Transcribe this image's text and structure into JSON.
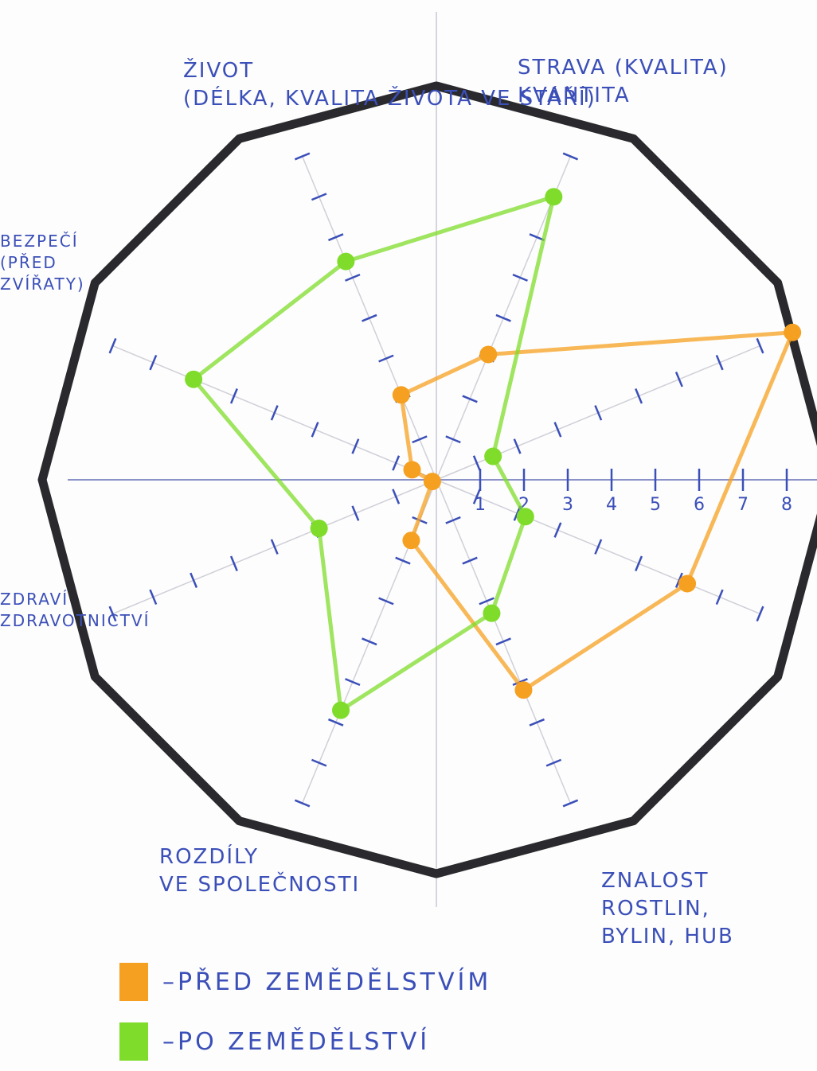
{
  "chart_data": {
    "type": "radar",
    "categories": [
      "STRAVA (KVALITA)\nKVANTITA",
      null,
      null,
      "ZNALOST ROSTLIN,\nBYLIN, HUB",
      "ROZDÍLY\nVE SPOLEČNOSTI",
      "ZDRAVÍ\nZDRAVOTNICTVÍ",
      "BEZPEČÍ\n(PŘED\nZVÍŘATY)",
      "ŽIVOT\n(DÉLKA, KVALITA ŽIVOTA VE STÁŘÍ)"
    ],
    "series": [
      {
        "name": "PŘED ZEMĚDĚLSTVÍM",
        "color": "#f5a020",
        "values": [
          3.1,
          8.8,
          6.2,
          5.2,
          1.5,
          0.1,
          0.6,
          2.1
        ]
      },
      {
        "name": "PO ZEMĚDĚLSTVÍ",
        "color": "#7fdc2a",
        "values": [
          7.0,
          1.4,
          2.2,
          3.3,
          5.7,
          2.9,
          6.0,
          5.4
        ]
      }
    ],
    "ylim": [
      0,
      9
    ],
    "yticks": [
      1,
      2,
      3,
      4,
      5,
      6,
      7,
      8
    ]
  }
}
